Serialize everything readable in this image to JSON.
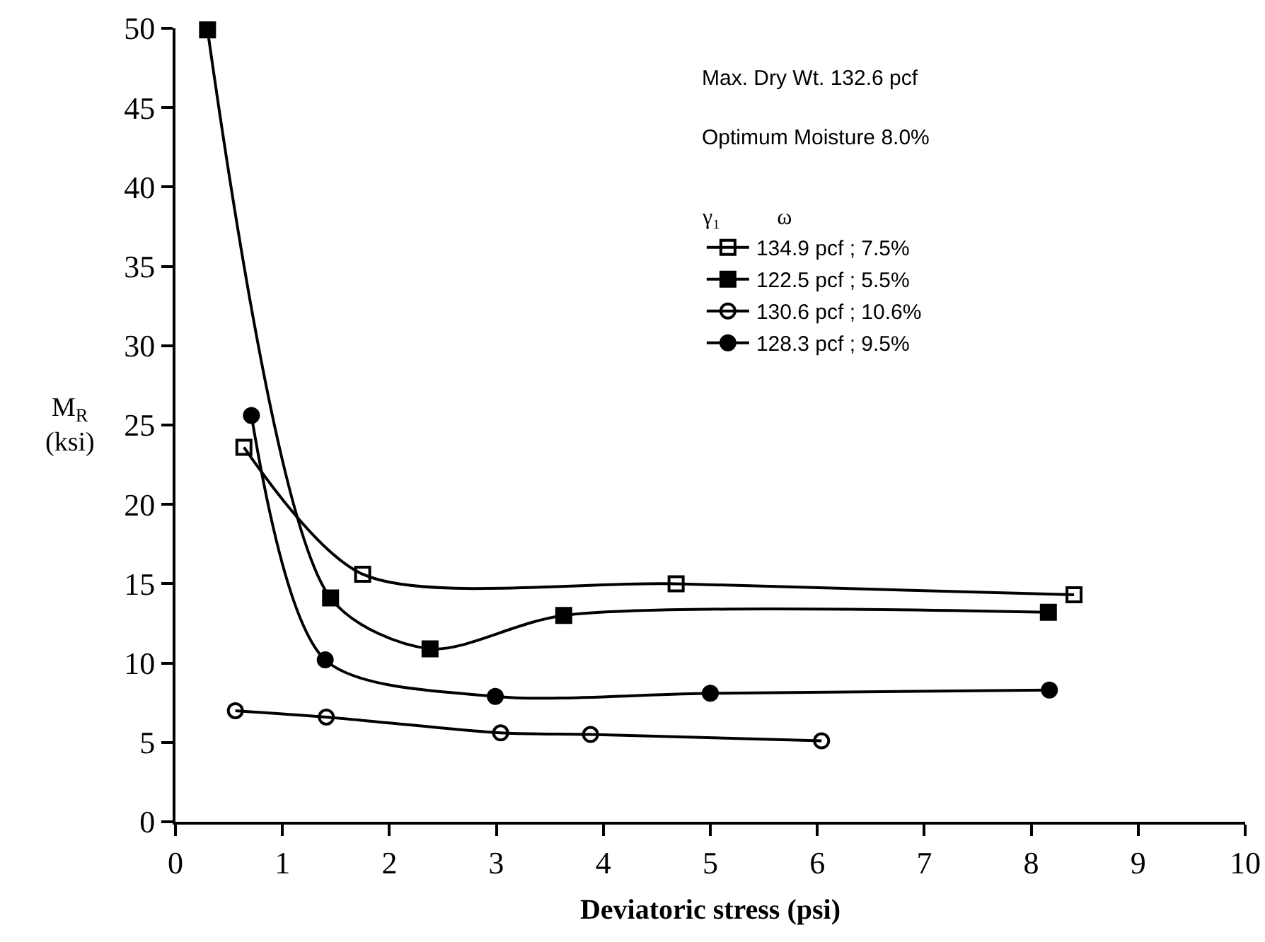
{
  "chart_data": {
    "type": "line",
    "xlabel": "Deviatoric stress (psi)",
    "ylabel": "M$_{R}$ (ksi)",
    "legend_title": "γ₁          ω",
    "annotations": [
      "Max. Dry Wt. 132.6 pcf",
      "Optimum Moisture 8.0%"
    ],
    "series": [
      {
        "name": "134.9 pcf ; 7.5%",
        "color": "#000000",
        "marker": "square-open",
        "x": [
          0.64,
          1.75,
          4.68,
          8.4
        ],
        "values": [
          23.6,
          15.6,
          15.0,
          14.3
        ]
      },
      {
        "name": "122.5 pcf ; 5.5%",
        "color": "#000000",
        "marker": "square",
        "x": [
          0.3,
          1.45,
          2.38,
          3.63,
          8.16
        ],
        "values": [
          49.9,
          14.1,
          10.9,
          13.0,
          13.2
        ]
      },
      {
        "name": "130.6 pcf ; 10.6%",
        "color": "#000000",
        "marker": "circle-open",
        "x": [
          0.56,
          1.41,
          3.04,
          3.88,
          6.04
        ],
        "values": [
          7.0,
          6.6,
          5.6,
          5.5,
          5.1
        ]
      },
      {
        "name": "128.3 pcf ; 9.5%",
        "color": "#000000",
        "marker": "circle",
        "x": [
          0.71,
          1.4,
          2.99,
          5.0,
          8.17
        ],
        "values": [
          25.6,
          10.2,
          7.9,
          8.1,
          8.3
        ]
      }
    ],
    "xlim": [
      0,
      10
    ],
    "xticks": [
      0,
      1,
      2,
      3,
      4,
      5,
      6,
      7,
      8,
      9,
      10
    ],
    "ylim": [
      0,
      50
    ],
    "yticks": [
      0,
      5,
      10,
      15,
      20,
      25,
      30,
      35,
      40,
      45,
      50
    ],
    "grid": false,
    "legend": "top right",
    "line_style": "solid"
  }
}
